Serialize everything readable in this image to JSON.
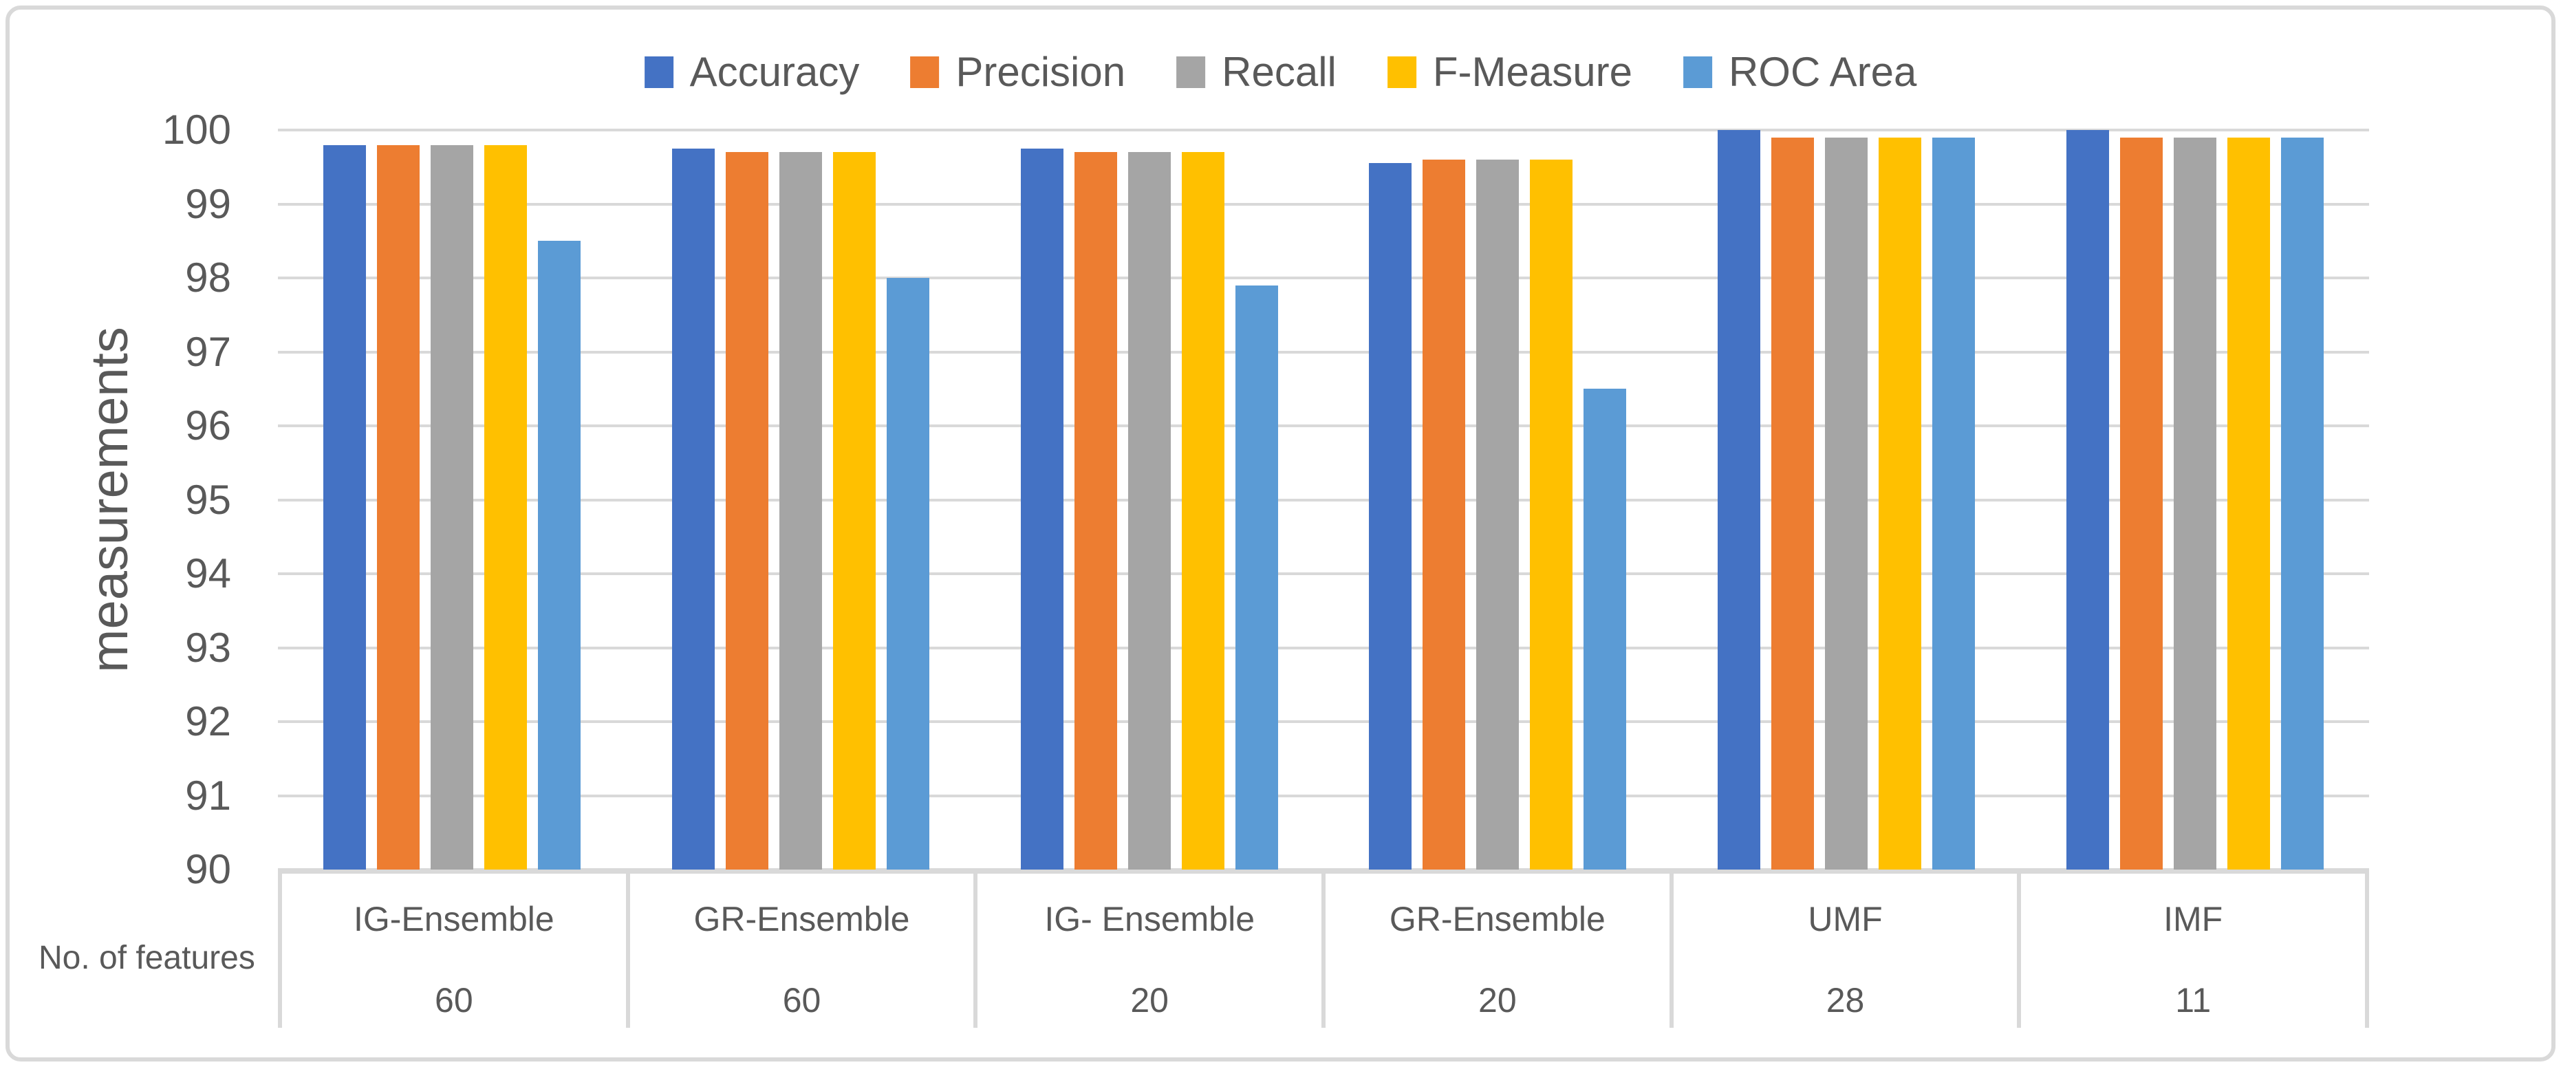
{
  "styles": {
    "text_color": "#595959",
    "grid_color": "#D9D9D9",
    "border_color": "#D9D9D9",
    "background": "#FFFFFF"
  },
  "chart_data": {
    "type": "bar",
    "title": "",
    "ylabel": "measurements",
    "xlabel": "",
    "x_row_label": "No. of features",
    "ylim": [
      90,
      100
    ],
    "ytick_step": 1,
    "grid": true,
    "legend_position": "top",
    "categories": [
      "IG-Ensemble",
      "GR-Ensemble",
      "IG- Ensemble",
      "GR-Ensemble",
      "UMF",
      "IMF"
    ],
    "feature_counts": [
      "60",
      "60",
      "20",
      "20",
      "28",
      "11"
    ],
    "series": [
      {
        "name": "Accuracy",
        "color": "#4472C4",
        "values": [
          99.8,
          99.75,
          99.75,
          99.55,
          100.0,
          100.0
        ]
      },
      {
        "name": "Precision",
        "color": "#ED7D31",
        "values": [
          99.8,
          99.7,
          99.7,
          99.6,
          99.9,
          99.9
        ]
      },
      {
        "name": "Recall",
        "color": "#A5A5A5",
        "values": [
          99.8,
          99.7,
          99.7,
          99.6,
          99.9,
          99.9
        ]
      },
      {
        "name": "F-Measure",
        "color": "#FFC000",
        "values": [
          99.8,
          99.7,
          99.7,
          99.6,
          99.9,
          99.9
        ]
      },
      {
        "name": "ROC Area",
        "color": "#5B9BD5",
        "values": [
          98.5,
          98.0,
          97.9,
          96.5,
          99.9,
          99.9
        ]
      }
    ]
  }
}
